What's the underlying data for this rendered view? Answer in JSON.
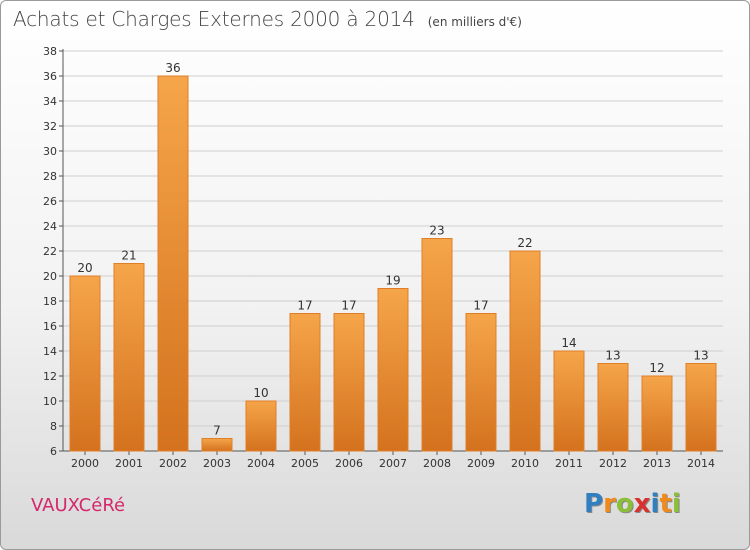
{
  "header": {
    "title": "Achats et Charges Externes 2000 à 2014",
    "unit": "(en milliers d'€)"
  },
  "footer": {
    "commune": "VAUXCéRé",
    "brand": "Proxiti",
    "brand_letters": [
      {
        "ch": "P",
        "color": "#2f7fc1"
      },
      {
        "ch": "r",
        "color": "#f08a1c"
      },
      {
        "ch": "o",
        "color": "#8bbf3a"
      },
      {
        "ch": "x",
        "color": "#d8322f"
      },
      {
        "ch": "i",
        "color": "#2f7fc1"
      },
      {
        "ch": "t",
        "color": "#f08a1c"
      },
      {
        "ch": "i",
        "color": "#8bbf3a"
      }
    ]
  },
  "colors": {
    "bar_light": "#f5a54a",
    "bar_dark": "#d4721e",
    "bar_edge": "#e07e28",
    "commune": "#d4286a"
  },
  "chart_data": {
    "type": "bar",
    "title": "Achats et Charges Externes 2000 à 2014",
    "subtitle": "(en milliers d'€)",
    "categories": [
      "2000",
      "2001",
      "2002",
      "2003",
      "2004",
      "2005",
      "2006",
      "2007",
      "2008",
      "2009",
      "2010",
      "2011",
      "2012",
      "2013",
      "2014"
    ],
    "values": [
      20,
      21,
      36,
      7,
      10,
      17,
      17,
      19,
      23,
      17,
      22,
      14,
      13,
      12,
      13
    ],
    "ylim": [
      6,
      38
    ],
    "yticks": [
      6,
      8,
      10,
      12,
      14,
      16,
      18,
      20,
      22,
      24,
      26,
      28,
      30,
      32,
      34,
      36,
      38
    ],
    "grid": true,
    "data_labels": true
  }
}
